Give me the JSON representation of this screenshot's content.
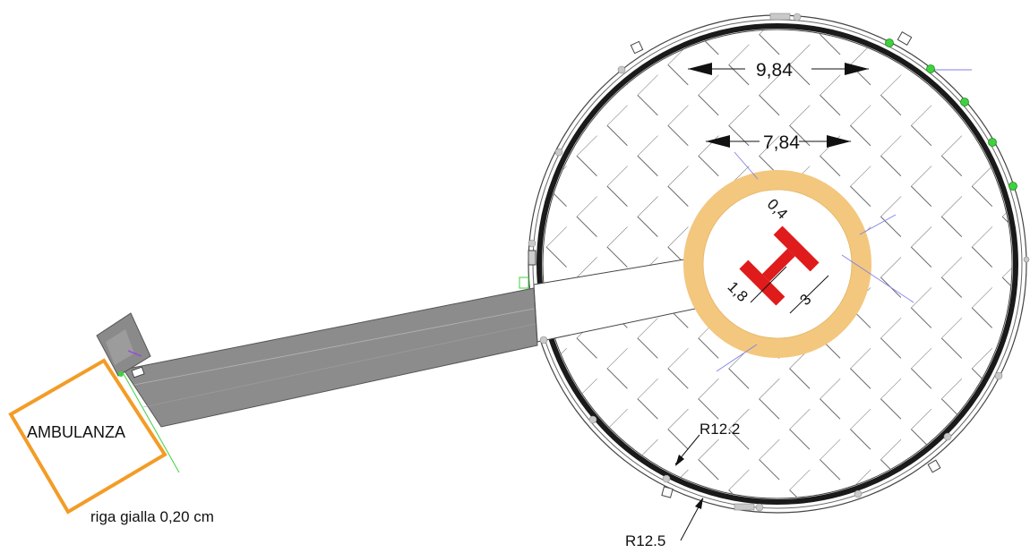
{
  "diagram": {
    "labels": {
      "ambulance": "AMBULANZA",
      "yellow_line": "riga gialla 0,20 cm",
      "inner_radius": "R12.2",
      "outer_radius": "R12.5",
      "dim_outer": "9,84",
      "dim_inner": "7,84",
      "ring_width": "0,4",
      "h_width": "1,8",
      "h_height": "3",
      "h_letter": "H"
    },
    "colors": {
      "yellow_ring": "#f3c77e",
      "h_mark": "#e01b1b",
      "ambulance_outline": "#f39c26",
      "walkway": "#8c8c8c",
      "green_marker": "#3fd23f",
      "blue_guides": "#8080e8",
      "ring_outline": "#111111"
    }
  }
}
